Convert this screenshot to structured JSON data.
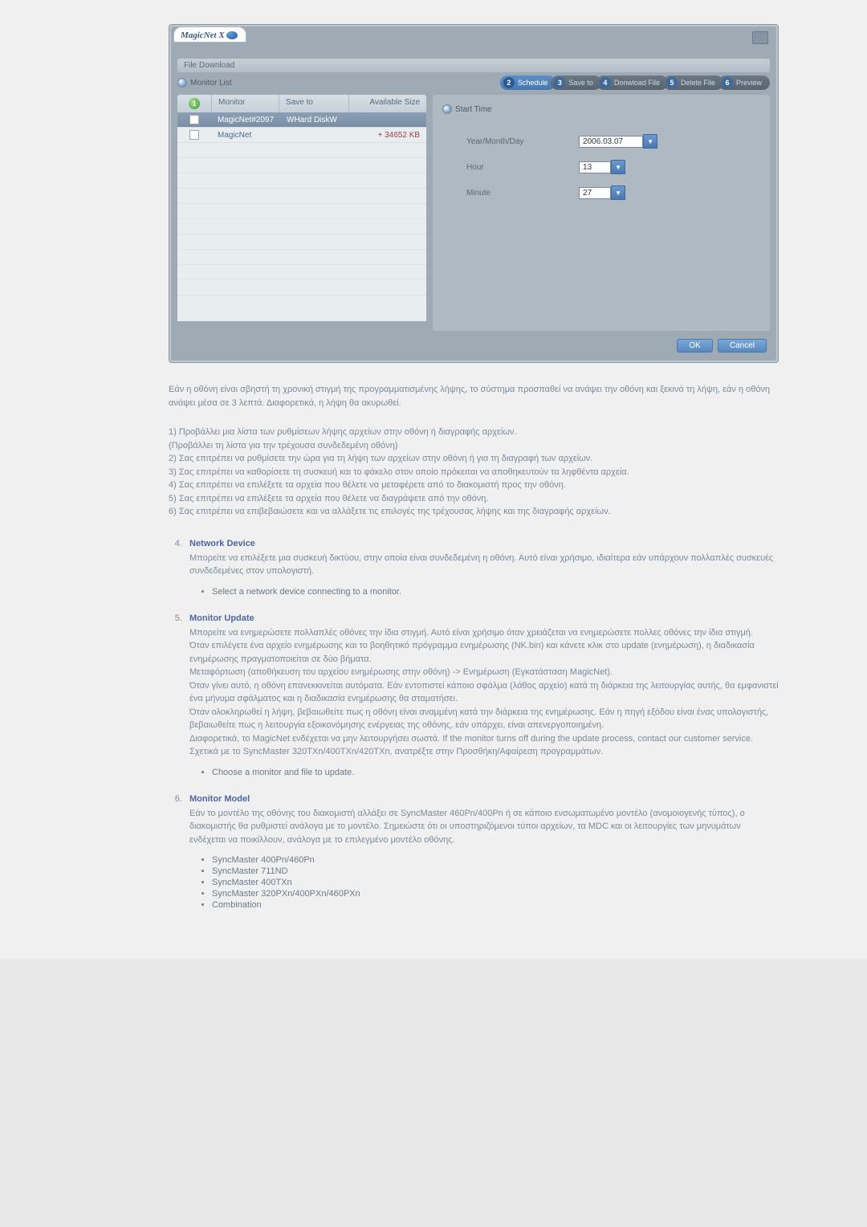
{
  "window": {
    "logo": "MagicNet X",
    "subtitle": "File Download",
    "tab_label": "Monitor List",
    "steps": [
      {
        "num": "2",
        "label": "Schedule"
      },
      {
        "num": "3",
        "label": "Save to"
      },
      {
        "num": "4",
        "label": "Donwload File"
      },
      {
        "num": "5",
        "label": "Delete File"
      },
      {
        "num": "6",
        "label": "Preview"
      }
    ],
    "table": {
      "head_icon": "1",
      "cols": [
        "Monitor",
        "Save to",
        "Available Size"
      ],
      "rows": [
        {
          "monitor": "MagicNet#2097",
          "saveto": "WHard DiskW",
          "size": "",
          "selected": true
        },
        {
          "monitor": "MagicNet",
          "saveto": "",
          "size": "+ 34652 KB",
          "selected": false
        }
      ]
    },
    "form": {
      "title": "Start Time",
      "r1_label": "Year/Month/Day",
      "r1_value": "2006.03.07",
      "r2_label": "Hour",
      "r2_value": "13",
      "r3_label": "Minute",
      "r3_value": "27"
    },
    "ok": "OK",
    "cancel": "Cancel"
  },
  "para1": "Εάν η οθόνη είναι σβηστή τη χρονική στιγμή της προγραμματισμένης λήψης, το σύστημα προσπαθεί να ανάψει την οθόνη και ξεκινά τη λήψη, εάν η οθόνη ανάψει μέσα σε 3 λεπτά. Διαφορετικά, η λήψη θα ακυρωθεί.",
  "numlist": {
    "l1": "1) Προβάλλει μια λίστα των ρυθμίσεων λήψης αρχείων στην οθόνη ή διαγραφής αρχείων.",
    "l1b": " (Προβάλλει τη λίστα για την τρέχουσα συνδεδεμένη οθόνη)",
    "l2": "2) Σας επιτρέπει να ρυθμίσετε την ώρα για τη λήψη των αρχείων στην οθόνη ή για τη διαγραφή των αρχείων.",
    "l3": "3) Σας επιτρέπει να καθορίσετε τη συσκευή και το φάκελο στον οποίο πρόκειται να αποθηκευτούν τα ληφθέντα αρχεία.",
    "l4": "4) Σας επιτρέπει να επιλέξετε τα αρχεία που θέλετε να μεταφέρετε από το διακομιστή προς την οθόνη.",
    "l5": "5) Σας επιτρέπει να επιλέξετε τα αρχεία που θέλετε να διαγράψετε από την οθόνη.",
    "l6": "6) Σας επιτρέπει να επιβεβαιώσετε και να αλλάξετε τις επιλογές της τρέχουσας λήψης και της διαγραφής αρχείων."
  },
  "item4": {
    "title": "Network Device",
    "body": "Μπορείτε να επιλέξετε μια συσκευή δικτύου, στην οποία είναι συνδεδεμένη η οθόνη. Αυτό είναι χρήσιμο, ιδιαίτερα εάν υπάρχουν πολλαπλές συσκευές συνδεδεμένες στον υπολογιστή.",
    "bullet": "Select a network device connecting to a monitor."
  },
  "item5": {
    "title": "Monitor Update",
    "p1": "Μπορείτε να ενημερώσετε πολλαπλές οθόνες την ίδια στιγμή. Αυτό είναι χρήσιμο όταν χρειάζεται να ενημερώσετε πολλες οθόνες την ίδια στιγμή.",
    "p2": "Όταν επιλέγετε ένα αρχείο ενημέρωσης και το βοηθητικό πρόγραμμα ενημέρωσης (NK.bin) και κάνετε κλικ στο update (ενημέρωση), η διαδικασία ενημέρωσης πραγματοποιείται σε δύο βήματα.",
    "p3": "Μεταφόρτωση (αποθήκευση του αρχείου ενημέρωσης στην οθόνη) -> Ενημέρωση (Εγκατάσταση MagicNet).",
    "p4": "Όταν γίνει αυτό, η οθόνη επανεκκινείται αυτόματα. Εάν εντοπιστεί κάποιο σφάλμα (λάθος αρχείο) κατά τη διάρκεια της λειτουργίας αυτής, θα εμφανιστεί ένα μήνυμα σφάλματος και η διαδικασία ενημέρωσης θα σταματήσει.",
    "p5": "Όταν ολοκληρωθεί η λήψη, βεβαιωθείτε πως η οθόνη είναι αναμμένη κατά την διάρκεια της ενημέρωσης. Εάν η πηγή εξόδου είναι ένας υπολογιστής, βεβαιωθείτε πως η λειτουργία εξοικονόμησης ενέργειας της οθόνης, εάν υπάρχει, είναι απενεργοποιημένη.",
    "p6": "Διαφορετικά, το MagicNet ενδέχεται να μην λειτουργήσει σωστά. If the monitor turns off during the update process, contact our customer service.",
    "p7": "Σχετικά με το SyncMaster 320TXn/400TXn/420TXn, ανατρέξτε στην Προσθήκη/Αφαίρεση προγραμμάτων.",
    "bullet": "Choose a monitor and file to update."
  },
  "item6": {
    "title": "Monitor Model",
    "body": "Εάν το μοντέλο της οθόνης του διακομιστή αλλάξει σε SyncMaster 460Pn/400Pn ή σε κάποιο ενσωματωμένο μοντέλο (ανομοιογενής τύπος), ο διακομιστής θα ρυθμιστεί ανάλογα με το μοντέλο. Σημειώστε ότι οι υποστηριζόμενοι τύποι αρχείων, τα MDC και οι λειτουργίες των μηνυμάτων ενδέχεται να ποικίλλουν, ανάλογα με το επιλεγμένο μοντέλο οθόνης.",
    "bullets": [
      "SyncMaster 400Pn/460Pn",
      "SyncMaster 711ND",
      "SyncMaster 400TXn",
      "SyncMaster 320PXn/400PXn/460PXn",
      "Combination"
    ]
  }
}
